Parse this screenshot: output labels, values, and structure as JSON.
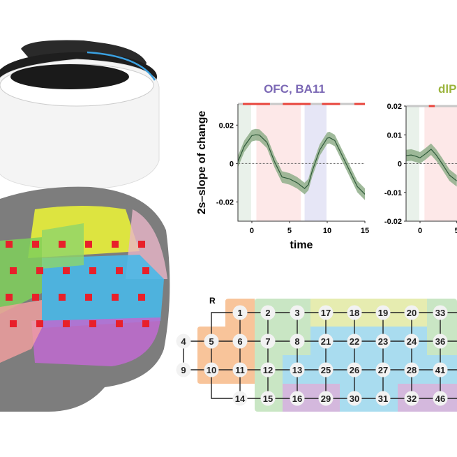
{
  "colors": {
    "title1": "#7b68b5",
    "title2": "#9bb43c",
    "curve": "#2f5a3a",
    "band": "#8fae8a",
    "sig": "#e8453c",
    "green_bg": "#e9f1ea",
    "pink_bg": "#fde8e8",
    "blue_bg": "#e6e6f6"
  },
  "device_icon": "headband-fnirs-device",
  "brain_icon": "brain-channel-map",
  "chart_data": [
    {
      "type": "line",
      "title": "OFC, BA11",
      "xlabel": "time",
      "ylabel": "2s–slope of change",
      "xlim": [
        -1.85,
        15
      ],
      "ylim": [
        -0.03,
        0.031
      ],
      "xticks": [
        "0",
        "5",
        "10",
        "15"
      ],
      "yticks": [
        "0.02",
        "0",
        "-0.02"
      ],
      "x": [
        -1.85,
        -1,
        0,
        0.5,
        1,
        2,
        3,
        4,
        5,
        6,
        7,
        7.5,
        8,
        9,
        10,
        10.3,
        11,
        12,
        13,
        14,
        15
      ],
      "y": [
        0.001,
        0.009,
        0.0145,
        0.015,
        0.0148,
        0.011,
        0.001,
        -0.007,
        -0.008,
        -0.01,
        -0.013,
        -0.011,
        -0.004,
        0.007,
        0.0132,
        0.0135,
        0.012,
        0.004,
        -0.004,
        -0.012,
        -0.016
      ],
      "band_halfwidth": 0.003,
      "shaded": [
        {
          "from": -1.85,
          "to": -0.1,
          "color": "green"
        },
        {
          "from": 0.6,
          "to": 6.5,
          "color": "pink"
        },
        {
          "from": 7,
          "to": 9.9,
          "color": "blue"
        }
      ],
      "significance": [
        [
          -1.2,
          2.4
        ],
        [
          4.1,
          7.8
        ],
        [
          9.3,
          11.7
        ],
        [
          13.6,
          15
        ]
      ]
    },
    {
      "type": "line",
      "title": "dlPFC",
      "xlim": [
        -1.9,
        15
      ],
      "ylim": [
        -0.02,
        0.02
      ],
      "xticks": [
        "0",
        "5"
      ],
      "yticks": [
        "0.02",
        "0.01",
        "0",
        "-0.01",
        "-0.02"
      ],
      "x": [
        -1.9,
        -1.2,
        -0.5,
        0,
        0.8,
        1.5,
        2.2,
        3,
        4,
        5
      ],
      "y": [
        0.0028,
        0.003,
        0.0025,
        0.002,
        0.0035,
        0.005,
        0.003,
        0,
        -0.004,
        -0.006
      ],
      "band_halfwidth": 0.002,
      "shaded": [
        {
          "from": -1.9,
          "to": -0.1,
          "color": "green"
        },
        {
          "from": 0.6,
          "to": 15,
          "color": "pink"
        }
      ],
      "significance": [
        [
          1.2,
          2.0
        ]
      ]
    }
  ],
  "channel_map": {
    "side_label": "R",
    "rows": [
      [
        null,
        null,
        "1",
        "2",
        "3",
        "17",
        "18",
        "19",
        "20",
        "33"
      ],
      [
        "4",
        "5",
        "6",
        "7",
        "8",
        "21",
        "22",
        "23",
        "24",
        "36"
      ],
      [
        "9",
        "10",
        "11",
        "12",
        "13",
        "25",
        "26",
        "27",
        "28",
        "41"
      ],
      [
        null,
        null,
        "14",
        "15",
        "16",
        "29",
        "30",
        "31",
        "32",
        "46"
      ]
    ]
  }
}
